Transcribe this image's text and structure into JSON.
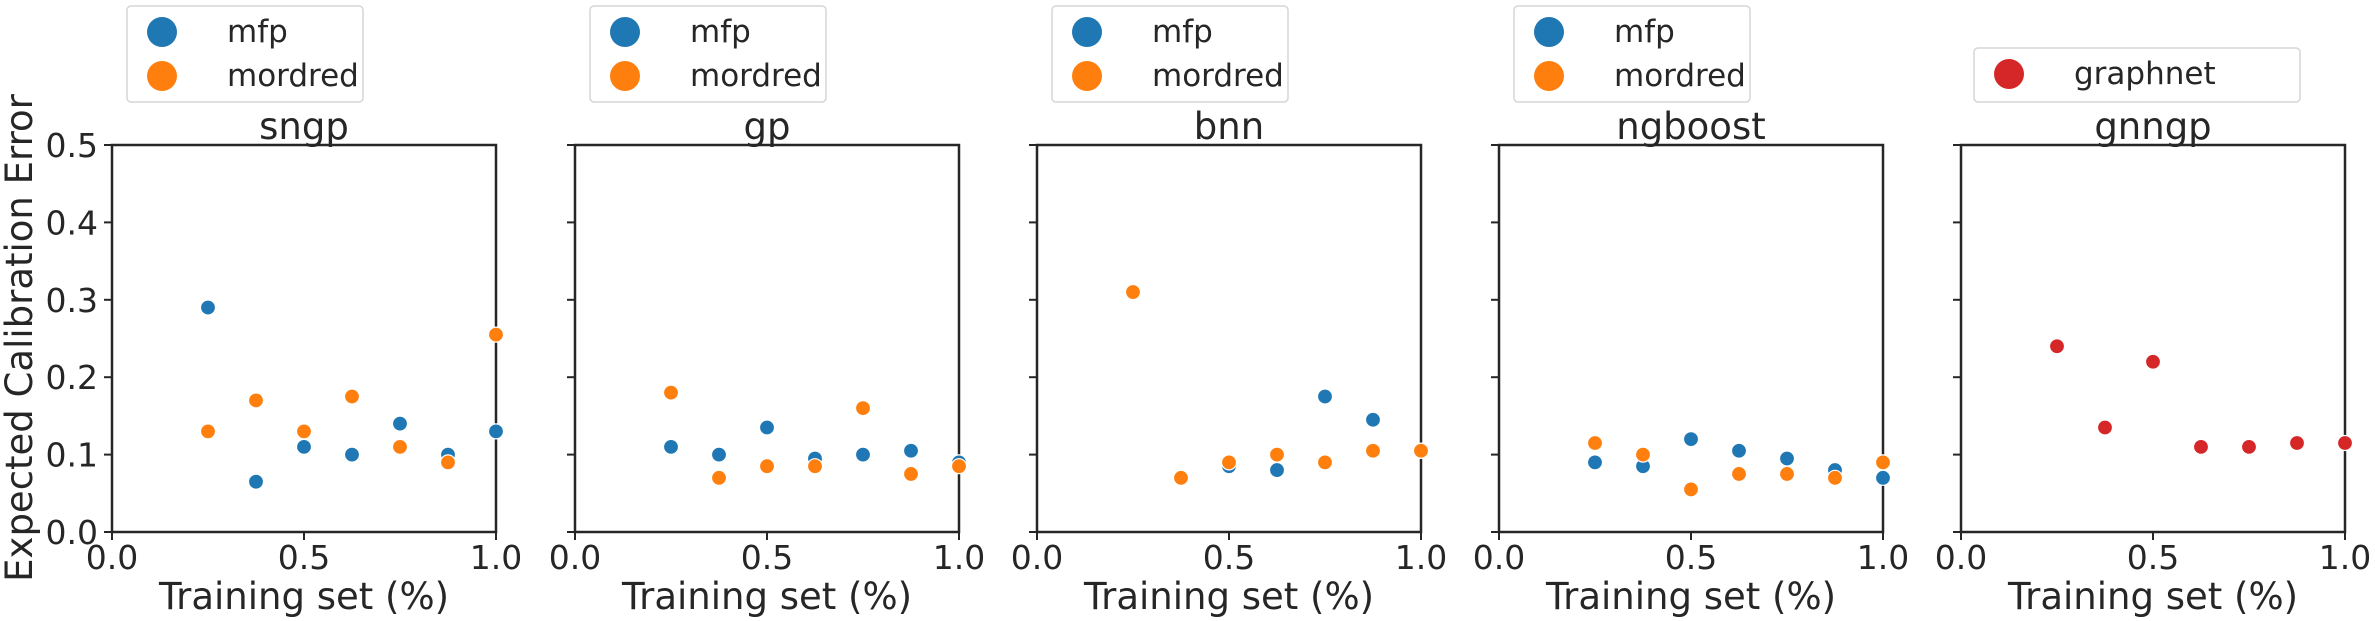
{
  "chart_data": {
    "type": "scatter",
    "ylabel": "Expected Calibration Error",
    "xlabel": "Training set (%)",
    "xlim": [
      0.0,
      1.0
    ],
    "ylim": [
      0.0,
      0.5
    ],
    "xticks": [
      "0.0",
      "0.5",
      "1.0"
    ],
    "yticks": [
      "0.0",
      "0.1",
      "0.2",
      "0.3",
      "0.4",
      "0.5"
    ],
    "colors": {
      "mfp": "#1f77b4",
      "mordred": "#ff7f0e",
      "graphnet": "#d62728"
    },
    "panels": [
      {
        "title": "sngp",
        "series": [
          {
            "name": "mfp",
            "x": [
              0.25,
              0.375,
              0.5,
              0.625,
              0.75,
              0.875,
              1.0
            ],
            "y": [
              0.29,
              0.065,
              0.11,
              0.1,
              0.14,
              0.1,
              0.13
            ]
          },
          {
            "name": "mordred",
            "x": [
              0.25,
              0.375,
              0.5,
              0.625,
              0.75,
              0.875,
              1.0
            ],
            "y": [
              0.13,
              0.17,
              0.13,
              0.175,
              0.11,
              0.09,
              0.255
            ]
          }
        ]
      },
      {
        "title": "gp",
        "series": [
          {
            "name": "mfp",
            "x": [
              0.25,
              0.375,
              0.5,
              0.625,
              0.75,
              0.875,
              1.0
            ],
            "y": [
              0.11,
              0.1,
              0.135,
              0.095,
              0.1,
              0.105,
              0.09
            ]
          },
          {
            "name": "mordred",
            "x": [
              0.25,
              0.375,
              0.5,
              0.625,
              0.75,
              0.875,
              1.0
            ],
            "y": [
              0.18,
              0.07,
              0.085,
              0.085,
              0.16,
              0.075,
              0.085
            ]
          }
        ]
      },
      {
        "title": "bnn",
        "series": [
          {
            "name": "mfp",
            "x": [
              0.375,
              0.5,
              0.625,
              0.75,
              0.875,
              1.0
            ],
            "y": [
              0.07,
              0.085,
              0.08,
              0.175,
              0.145,
              0.105
            ]
          },
          {
            "name": "mordred",
            "x": [
              0.25,
              0.375,
              0.5,
              0.625,
              0.75,
              0.875,
              1.0
            ],
            "y": [
              0.31,
              0.07,
              0.09,
              0.1,
              0.09,
              0.105,
              0.105
            ]
          }
        ]
      },
      {
        "title": "ngboost",
        "series": [
          {
            "name": "mfp",
            "x": [
              0.25,
              0.375,
              0.5,
              0.625,
              0.75,
              0.875,
              1.0
            ],
            "y": [
              0.09,
              0.085,
              0.12,
              0.105,
              0.095,
              0.08,
              0.07
            ]
          },
          {
            "name": "mordred",
            "x": [
              0.25,
              0.375,
              0.5,
              0.625,
              0.75,
              0.875,
              1.0
            ],
            "y": [
              0.115,
              0.1,
              0.055,
              0.075,
              0.075,
              0.07,
              0.09
            ]
          }
        ]
      },
      {
        "title": "gnngp",
        "series": [
          {
            "name": "graphnet",
            "x": [
              0.25,
              0.375,
              0.5,
              0.625,
              0.75,
              0.875,
              1.0
            ],
            "y": [
              0.24,
              0.135,
              0.22,
              0.11,
              0.11,
              0.115,
              0.115
            ]
          }
        ]
      }
    ]
  }
}
